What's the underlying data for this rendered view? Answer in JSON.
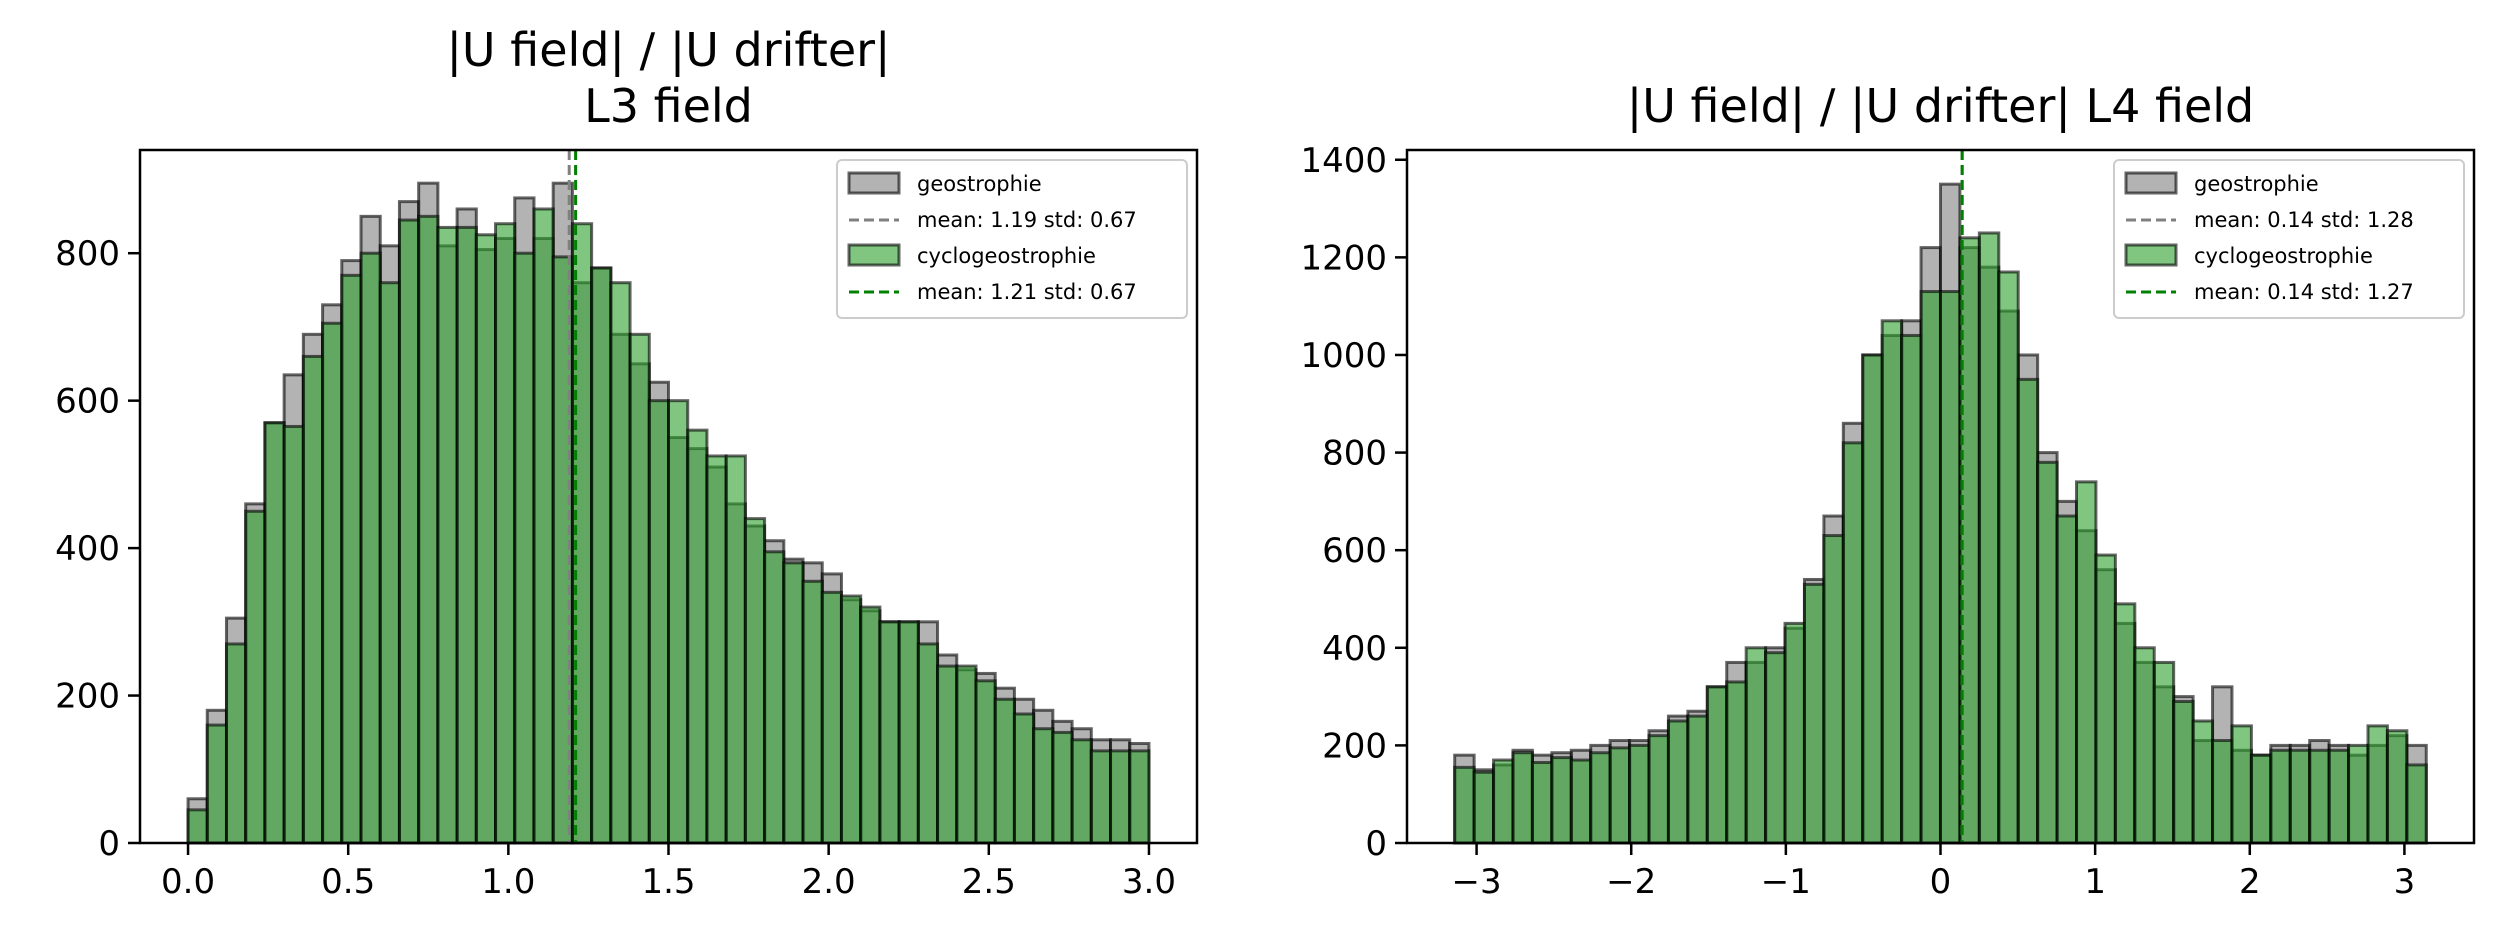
{
  "chart_data": [
    {
      "type": "bar",
      "title_lines": [
        "|U field| / |U drifter|",
        "L3 field"
      ],
      "xlabel": "",
      "ylabel": "",
      "xlim": [
        -0.15,
        3.15
      ],
      "ylim": [
        0,
        940
      ],
      "xticks": [
        0.0,
        0.5,
        1.0,
        1.5,
        2.0,
        2.5,
        3.0
      ],
      "xtick_labels": [
        "0.0",
        "0.5",
        "1.0",
        "1.5",
        "2.0",
        "2.5",
        "3.0"
      ],
      "yticks": [
        0,
        200,
        400,
        600,
        800
      ],
      "ytick_labels": [
        "0",
        "200",
        "400",
        "600",
        "800"
      ],
      "bin_start": 0.0,
      "bin_width": 0.06,
      "series": [
        {
          "name": "geostrophie",
          "color": "#808080",
          "values": [
            60,
            180,
            305,
            460,
            570,
            635,
            690,
            730,
            790,
            850,
            810,
            870,
            895,
            810,
            860,
            805,
            820,
            875,
            820,
            895,
            760,
            780,
            690,
            650,
            625,
            550,
            535,
            510,
            460,
            430,
            410,
            385,
            380,
            365,
            330,
            315,
            300,
            300,
            300,
            255,
            235,
            230,
            210,
            195,
            180,
            165,
            155,
            140,
            140,
            135
          ],
          "mean_line": {
            "label": "mean: 1.19 std: 0.67",
            "value": 1.19
          }
        },
        {
          "name": "cyclogeostrophie",
          "color": "#2ca02c",
          "values": [
            45,
            160,
            270,
            450,
            570,
            565,
            660,
            705,
            770,
            800,
            760,
            845,
            850,
            835,
            835,
            825,
            840,
            800,
            860,
            795,
            840,
            780,
            760,
            690,
            600,
            600,
            560,
            525,
            525,
            440,
            395,
            380,
            355,
            340,
            335,
            320,
            300,
            300,
            270,
            240,
            240,
            220,
            195,
            175,
            155,
            150,
            140,
            125,
            125,
            125
          ],
          "mean_line": {
            "label": "mean: 1.21 std: 0.67",
            "value": 1.21
          }
        }
      ],
      "legend_position": "upper right",
      "grid": false
    },
    {
      "type": "bar",
      "title_lines": [
        "|U field| / |U drifter| L4 field"
      ],
      "xlabel": "",
      "ylabel": "",
      "xlim": [
        -3.45,
        3.45
      ],
      "ylim": [
        0,
        1420
      ],
      "xticks": [
        -3,
        -2,
        -1,
        0,
        1,
        2,
        3
      ],
      "xtick_labels": [
        "−3",
        "−2",
        "−1",
        "0",
        "1",
        "2",
        "3"
      ],
      "yticks": [
        0,
        200,
        400,
        600,
        800,
        1000,
        1200,
        1400
      ],
      "ytick_labels": [
        "0",
        "200",
        "400",
        "600",
        "800",
        "1000",
        "1200",
        "1400"
      ],
      "bin_start": -3.1416,
      "bin_width": 0.12566,
      "series": [
        {
          "name": "geostrophie",
          "color": "#808080",
          "values": [
            180,
            150,
            160,
            190,
            180,
            185,
            190,
            200,
            210,
            210,
            230,
            260,
            270,
            320,
            370,
            370,
            400,
            440,
            540,
            670,
            860,
            1000,
            1040,
            1070,
            1220,
            1350,
            1220,
            1180,
            1090,
            1000,
            800,
            700,
            640,
            560,
            450,
            370,
            320,
            300,
            210,
            320,
            190,
            180,
            200,
            200,
            210,
            200,
            180,
            200,
            220,
            200
          ],
          "mean_line": {
            "label": "mean: 0.14 std: 1.28",
            "value": 0.14
          }
        },
        {
          "name": "cyclogeostrophie",
          "color": "#2ca02c",
          "values": [
            155,
            145,
            170,
            185,
            165,
            175,
            170,
            185,
            195,
            200,
            220,
            250,
            260,
            320,
            330,
            400,
            390,
            450,
            530,
            630,
            820,
            1000,
            1070,
            1040,
            1130,
            1130,
            1240,
            1250,
            1170,
            950,
            780,
            670,
            740,
            590,
            490,
            400,
            370,
            290,
            250,
            210,
            240,
            180,
            190,
            190,
            190,
            190,
            200,
            240,
            230,
            160
          ],
          "mean_line": {
            "label": "mean: 0.14 std: 1.27",
            "value": 0.14
          }
        }
      ],
      "legend_position": "upper right",
      "grid": false
    }
  ]
}
